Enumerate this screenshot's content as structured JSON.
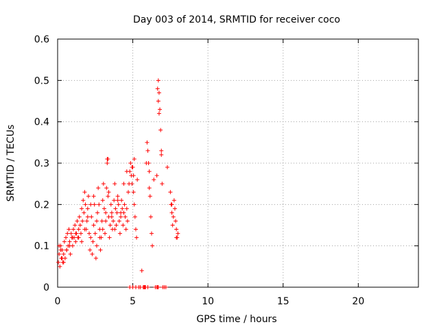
{
  "chart_data": {
    "type": "scatter",
    "title": "Day 003 of 2014, SRMTID for receiver coco",
    "xlabel": "GPS time / hours",
    "ylabel": "SRMTID / TECUs",
    "xlim": [
      0,
      24
    ],
    "ylim": [
      0,
      0.6
    ],
    "xticks": [
      0,
      5,
      10,
      15,
      20
    ],
    "xtick_labels": [
      "0",
      "5",
      "10",
      "15",
      "20"
    ],
    "yticks": [
      0,
      0.1,
      0.2,
      0.3,
      0.4,
      0.5,
      0.6
    ],
    "ytick_labels": [
      "0",
      "0.1",
      "0.2",
      "0.3",
      "0.4",
      "0.5",
      "0.6"
    ],
    "grid": true,
    "marker": "+",
    "series": [
      {
        "name": "SRMTID",
        "color": "#ff0000",
        "x": [
          0.05,
          0.1,
          0.15,
          0.2,
          0.25,
          0.3,
          0.35,
          0.4,
          0.45,
          0.5,
          0.55,
          0.6,
          0.65,
          0.7,
          0.75,
          0.8,
          0.85,
          0.9,
          0.95,
          1.0,
          1.05,
          1.1,
          1.15,
          1.2,
          1.25,
          1.3,
          1.35,
          1.4,
          1.45,
          1.5,
          1.55,
          1.6,
          1.65,
          1.7,
          1.75,
          1.8,
          1.85,
          1.9,
          1.95,
          2.0,
          2.05,
          2.1,
          2.15,
          2.2,
          2.25,
          2.3,
          2.35,
          2.4,
          2.45,
          2.5,
          2.55,
          2.6,
          2.65,
          2.7,
          2.75,
          2.8,
          2.85,
          2.9,
          2.95,
          3.0,
          3.05,
          3.1,
          3.15,
          3.2,
          3.25,
          3.3,
          3.35,
          3.4,
          3.45,
          3.5,
          3.55,
          3.6,
          3.65,
          3.7,
          3.75,
          3.8,
          3.85,
          3.9,
          3.95,
          4.0,
          4.05,
          4.1,
          4.15,
          4.2,
          4.25,
          4.3,
          4.35,
          4.4,
          4.45,
          4.5,
          4.55,
          4.6,
          4.65,
          4.7,
          4.75,
          4.8,
          4.85,
          4.9,
          4.95,
          5.0,
          5.05,
          5.1,
          5.15,
          5.2,
          5.25,
          5.7,
          5.75,
          5.8,
          5.85,
          5.9,
          5.95,
          6.0,
          6.05,
          6.1,
          6.15,
          6.2,
          6.25,
          6.3,
          6.6,
          6.65,
          6.7,
          6.75,
          6.8,
          6.85,
          6.9,
          6.95,
          7.5,
          7.55,
          7.6,
          7.65,
          7.7,
          7.75,
          7.8,
          7.85,
          7.9,
          7.95,
          8.0,
          0.1,
          0.2,
          0.3,
          0.4,
          0.6,
          0.8,
          1.0,
          1.2,
          1.4,
          1.6,
          1.8,
          2.0,
          2.2,
          2.4,
          2.6,
          2.8,
          3.0,
          3.2,
          3.4,
          3.6,
          3.8,
          4.0,
          4.2,
          4.4,
          4.6,
          4.8,
          5.0,
          5.2,
          5.4,
          5.5,
          5.6,
          5.8,
          6.0,
          6.5,
          6.6,
          6.7,
          7.0,
          7.1,
          7.2,
          7.3,
          5.1,
          5.3,
          6.1,
          6.4,
          6.9,
          7.6,
          7.9,
          3.3,
          3.35,
          4.95,
          5.05,
          6.65,
          6.7,
          6.75
        ],
        "y": [
          0.06,
          0.08,
          0.05,
          0.1,
          0.07,
          0.09,
          0.06,
          0.08,
          0.11,
          0.07,
          0.12,
          0.09,
          0.13,
          0.1,
          0.14,
          0.11,
          0.08,
          0.13,
          0.12,
          0.1,
          0.14,
          0.12,
          0.15,
          0.11,
          0.13,
          0.16,
          0.12,
          0.14,
          0.17,
          0.15,
          0.13,
          0.19,
          0.16,
          0.21,
          0.18,
          0.23,
          0.2,
          0.14,
          0.16,
          0.19,
          0.22,
          0.13,
          0.09,
          0.12,
          0.17,
          0.08,
          0.11,
          0.15,
          0.2,
          0.13,
          0.07,
          0.1,
          0.18,
          0.24,
          0.2,
          0.14,
          0.09,
          0.12,
          0.16,
          0.21,
          0.25,
          0.19,
          0.13,
          0.16,
          0.24,
          0.31,
          0.22,
          0.17,
          0.12,
          0.15,
          0.2,
          0.18,
          0.14,
          0.16,
          0.21,
          0.25,
          0.19,
          0.15,
          0.18,
          0.22,
          0.2,
          0.16,
          0.13,
          0.17,
          0.21,
          0.19,
          0.15,
          0.18,
          0.2,
          0.17,
          0.14,
          0.19,
          0.16,
          0.23,
          0.25,
          0.28,
          0.3,
          0.27,
          0.25,
          0.29,
          0.23,
          0.2,
          0.17,
          0.14,
          0.12,
          0.0,
          0.0,
          0.0,
          0.0,
          0.3,
          0.35,
          0.33,
          0.3,
          0.28,
          0.22,
          0.17,
          0.13,
          0.1,
          0.0,
          0.0,
          0.5,
          0.47,
          0.43,
          0.38,
          0.33,
          0.25,
          0.23,
          0.2,
          0.18,
          0.15,
          0.17,
          0.21,
          0.19,
          0.16,
          0.14,
          0.12,
          0.13,
          0.1,
          0.09,
          0.07,
          0.06,
          0.09,
          0.1,
          0.12,
          0.13,
          0.12,
          0.11,
          0.14,
          0.17,
          0.2,
          0.22,
          0.16,
          0.12,
          0.14,
          0.18,
          0.23,
          0.17,
          0.14,
          0.21,
          0.18,
          0.25,
          0.28,
          0.0,
          0.0,
          0.0,
          0.0,
          0.0,
          0.04,
          0.0,
          0.0,
          0.0,
          0.27,
          0.0,
          0.0,
          0.0,
          0.0,
          0.29,
          0.31,
          0.26,
          0.24,
          0.26,
          0.32,
          0.2,
          0.12,
          0.3,
          0.31,
          0.29,
          0.27,
          0.48,
          0.45,
          0.42
        ]
      }
    ]
  }
}
